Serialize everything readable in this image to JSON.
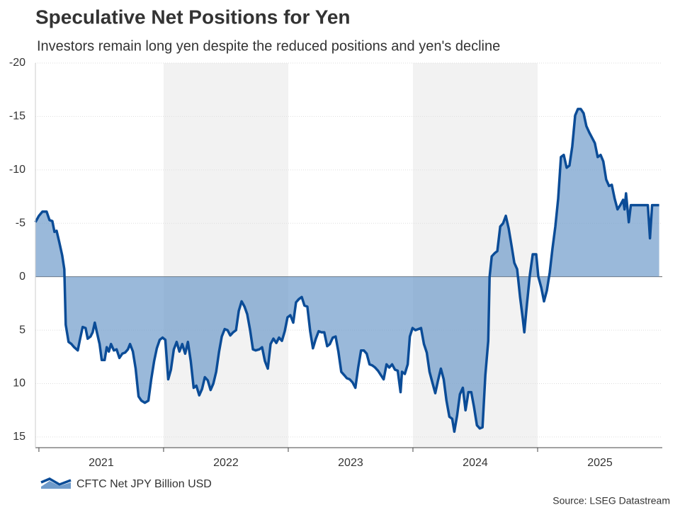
{
  "chart_data": {
    "type": "line",
    "title": "Speculative Net Positions for Yen",
    "subtitle": "Investors remain long yen despite the reduced positions and yen's decline",
    "source": "Source: LSEG Datastream",
    "categories": [
      "2021",
      "2022",
      "2023",
      "2024",
      "2025"
    ],
    "shaded_years": [
      2022,
      2024
    ],
    "xlim": [
      2020.972,
      2026
    ],
    "xticks": [
      2021,
      2022,
      2023,
      2024,
      2025
    ],
    "ylim": [
      -20,
      16
    ],
    "y_inverted": true,
    "yticks": [
      -20,
      -15,
      -10,
      -5,
      0,
      5,
      10,
      15
    ],
    "grid": true,
    "series": [
      {
        "name": "CFTC Net JPY Billion USD",
        "color": "#0b4c97",
        "fill": "#6f9bcb",
        "x": [
          2020.972,
          2021.0,
          2021.028,
          2021.062,
          2021.085,
          2021.108,
          2021.125,
          2021.142,
          2021.164,
          2021.187,
          2021.204,
          2021.215,
          2021.238,
          2021.261,
          2021.283,
          2021.312,
          2021.329,
          2021.351,
          2021.374,
          2021.391,
          2021.414,
          2021.431,
          2021.448,
          2021.465,
          2021.487,
          2021.504,
          2021.527,
          2021.544,
          2021.561,
          2021.578,
          2021.601,
          2021.623,
          2021.646,
          2021.669,
          2021.691,
          2021.714,
          2021.731,
          2021.754,
          2021.776,
          2021.799,
          2021.822,
          2021.85,
          2021.878,
          2021.901,
          2021.924,
          2021.946,
          2021.969,
          2021.992,
          2022.014,
          2022.037,
          2022.059,
          2022.082,
          2022.105,
          2022.127,
          2022.15,
          2022.173,
          2022.195,
          2022.218,
          2022.241,
          2022.263,
          2022.286,
          2022.309,
          2022.331,
          2022.354,
          2022.377,
          2022.399,
          2022.422,
          2022.445,
          2022.467,
          2022.49,
          2022.513,
          2022.535,
          2022.558,
          2022.581,
          2022.603,
          2022.626,
          2022.649,
          2022.671,
          2022.694,
          2022.717,
          2022.739,
          2022.768,
          2022.79,
          2022.813,
          2022.836,
          2022.858,
          2022.881,
          2022.904,
          2022.926,
          2022.949,
          2022.972,
          2022.994,
          2023.017,
          2023.04,
          2023.062,
          2023.085,
          2023.108,
          2023.13,
          2023.153,
          2023.176,
          2023.198,
          2023.221,
          2023.244,
          2023.266,
          2023.289,
          2023.312,
          2023.334,
          2023.357,
          2023.38,
          2023.402,
          2023.425,
          2023.448,
          2023.47,
          2023.493,
          2023.516,
          2023.538,
          2023.561,
          2023.584,
          2023.606,
          2023.629,
          2023.652,
          2023.674,
          2023.697,
          2023.72,
          2023.742,
          2023.765,
          2023.788,
          2023.81,
          2023.833,
          2023.856,
          2023.878,
          2023.901,
          2023.912,
          2023.935,
          2023.958,
          2023.975,
          2023.997,
          2024.02,
          2024.043,
          2024.065,
          2024.088,
          2024.111,
          2024.133,
          2024.156,
          2024.179,
          2024.201,
          2024.224,
          2024.247,
          2024.269,
          2024.292,
          2024.315,
          2024.332,
          2024.354,
          2024.377,
          2024.4,
          2024.422,
          2024.445,
          2024.468,
          2024.49,
          2024.513,
          2024.536,
          2024.558,
          2024.581,
          2024.604,
          2024.615,
          2024.632,
          2024.655,
          2024.677,
          2024.7,
          2024.723,
          2024.745,
          2024.768,
          2024.791,
          2024.813,
          2024.836,
          2024.859,
          2024.881,
          2024.893,
          2024.915,
          2024.938,
          2024.961,
          2024.989,
          2025.006,
          2025.029,
          2025.051,
          2025.074,
          2025.097,
          2025.119,
          2025.142,
          2025.165,
          2025.187,
          2025.21,
          2025.233,
          2025.255,
          2025.278,
          2025.301,
          2025.323,
          2025.346,
          2025.369,
          2025.391,
          2025.414,
          2025.437,
          2025.459,
          2025.482,
          2025.505,
          2025.527,
          2025.55,
          2025.573,
          2025.595,
          2025.618,
          2025.641,
          2025.663,
          2025.686,
          2025.697,
          2025.709,
          2025.731,
          2025.748,
          2025.788,
          2025.845,
          2025.884,
          2025.901,
          2025.918,
          2025.975
        ],
        "values": [
          -5.1,
          -5.7,
          -6.1,
          -6.1,
          -5.3,
          -5.2,
          -4.2,
          -4.3,
          -3.2,
          -2.0,
          -0.7,
          4.5,
          6.1,
          6.3,
          6.6,
          6.9,
          5.9,
          4.7,
          4.8,
          5.8,
          5.6,
          5.2,
          4.3,
          5.2,
          6.3,
          7.8,
          7.8,
          6.6,
          7.0,
          6.3,
          6.9,
          6.8,
          7.6,
          7.2,
          7.1,
          6.8,
          6.3,
          7.0,
          8.6,
          11.2,
          11.6,
          11.8,
          11.6,
          9.6,
          7.9,
          6.7,
          5.9,
          5.7,
          5.9,
          9.6,
          8.7,
          6.8,
          6.1,
          7.0,
          6.3,
          7.2,
          6.1,
          7.9,
          10.4,
          10.2,
          11.1,
          10.5,
          9.4,
          9.7,
          10.6,
          10.0,
          8.9,
          7.0,
          5.6,
          4.9,
          5.0,
          5.5,
          5.2,
          5.0,
          3.2,
          2.3,
          2.8,
          3.5,
          5.0,
          6.8,
          6.9,
          6.8,
          6.6,
          7.9,
          8.6,
          6.3,
          5.8,
          6.2,
          5.7,
          6.0,
          5.1,
          3.8,
          3.6,
          4.3,
          2.4,
          2.1,
          1.9,
          2.7,
          2.8,
          5.1,
          6.7,
          5.8,
          5.1,
          5.2,
          5.2,
          6.5,
          6.3,
          5.7,
          5.6,
          7.0,
          8.9,
          9.2,
          9.5,
          9.6,
          9.9,
          10.4,
          8.5,
          6.9,
          6.9,
          7.2,
          8.2,
          8.3,
          8.5,
          8.8,
          9.2,
          9.6,
          8.2,
          8.5,
          8.2,
          8.7,
          8.8,
          10.8,
          8.9,
          9.1,
          8.2,
          5.6,
          4.8,
          5.0,
          4.9,
          4.8,
          6.3,
          7.1,
          8.9,
          9.9,
          10.9,
          9.7,
          8.6,
          9.6,
          11.6,
          13.1,
          13.3,
          14.5,
          13.0,
          11.0,
          10.4,
          12.5,
          10.8,
          10.8,
          12.2,
          13.9,
          14.2,
          14.1,
          9.2,
          6.0,
          0,
          -1.9,
          -2.2,
          -2.4,
          -4.7,
          -5.0,
          -5.7,
          -4.5,
          -2.9,
          -1.3,
          -0.7,
          1.9,
          3.9,
          5.2,
          2.5,
          -0.2,
          -2.1,
          -2.1,
          0,
          1.0,
          2.3,
          1.3,
          -0.4,
          -2.6,
          -4.7,
          -7.3,
          -11.2,
          -11.4,
          -10.2,
          -10.4,
          -12.2,
          -15.1,
          -15.7,
          -15.7,
          -15.3,
          -14.1,
          -13.5,
          -13.0,
          -12.5,
          -11.2,
          -11.4,
          -10.8,
          -9.1,
          -8.5,
          -8.6,
          -7.3,
          -6.3,
          -6.7,
          -7.2,
          -6.3,
          -7.8,
          -5.1,
          -6.7,
          -6.7,
          -6.7,
          -6.7,
          -3.6,
          -6.7,
          -6.7
        ]
      }
    ]
  }
}
